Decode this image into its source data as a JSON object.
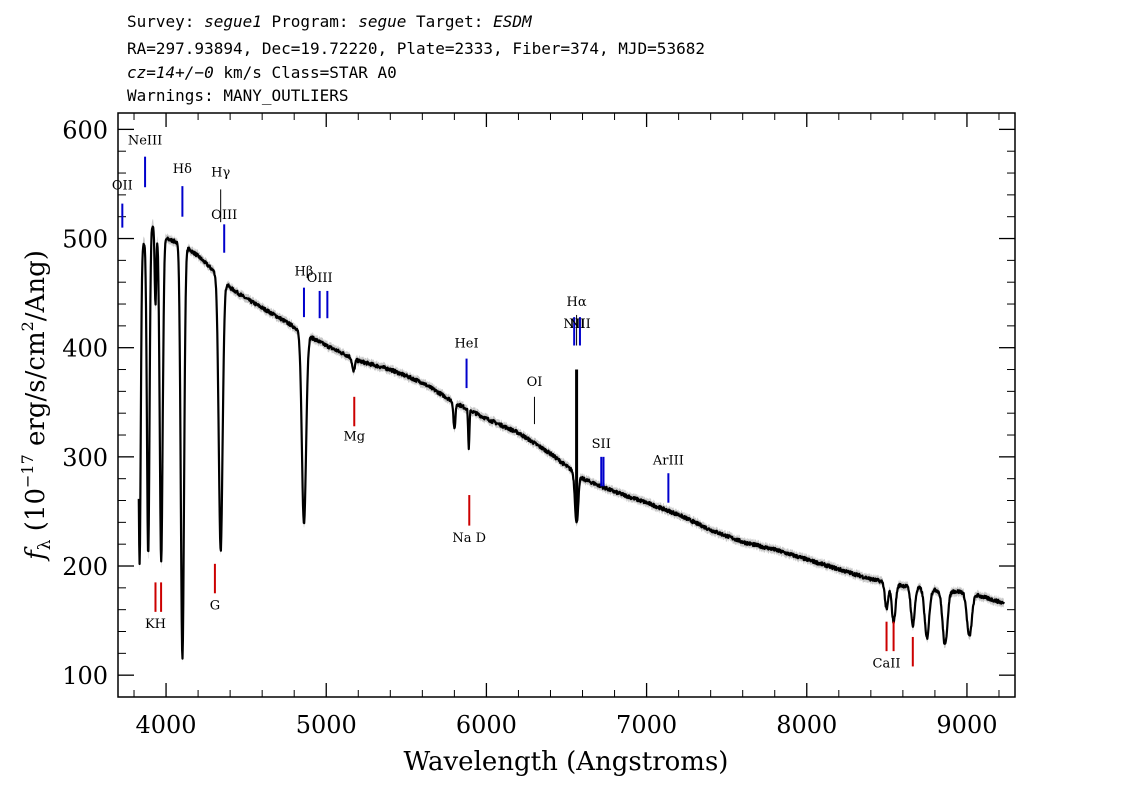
{
  "header": {
    "line1": {
      "survey_label": "Survey: ",
      "survey": "segue1",
      "program_label": " Program: ",
      "program": "segue",
      "target_label": " Target: ",
      "target": "ESDM"
    },
    "line2": "RA=297.93894, Dec=19.72220, Plate=2333, Fiber=374, MJD=53682",
    "line3": {
      "cz": "cz=14+/−0",
      "rest": " km/s Class=STAR A0"
    },
    "line4": "Warnings: MANY_OUTLIERS"
  },
  "colors": {
    "flux": "#000000",
    "error_band": "#9a9a9a",
    "emission": "#0000cc",
    "absorption": "#cc0000"
  },
  "chart_data": {
    "type": "line",
    "title": "",
    "xlabel": "Wavelength (Angstroms)",
    "ylabel": "fλ (10⁻¹⁷ erg/s/cm²/Ang)",
    "ylabel_parts": {
      "f": "f",
      "sub": "λ",
      "a": " (10",
      "exp1": "−17",
      "b": " erg/s/cm",
      "exp2": "2",
      "c": "/Ang)"
    },
    "xlim": [
      3700,
      9300
    ],
    "ylim": [
      80,
      615
    ],
    "xticks": [
      4000,
      5000,
      6000,
      7000,
      8000,
      9000
    ],
    "yticks": [
      100,
      200,
      300,
      400,
      500,
      600
    ],
    "continuum": {
      "x": [
        3830,
        3900,
        4000,
        4100,
        4200,
        4300,
        4400,
        4500,
        4700,
        4900,
        5000,
        5200,
        5400,
        5600,
        5800,
        6000,
        6200,
        6400,
        6600,
        6800,
        7000,
        7200,
        7400,
        7600,
        7800,
        8000,
        8200,
        8400,
        8600,
        8800,
        9000,
        9230
      ],
      "y": [
        480,
        515,
        500,
        495,
        484,
        470,
        455,
        445,
        428,
        410,
        402,
        388,
        380,
        368,
        350,
        335,
        322,
        303,
        280,
        268,
        258,
        247,
        233,
        222,
        215,
        206,
        197,
        188,
        182,
        178,
        176,
        166
      ]
    },
    "absorption_features": [
      {
        "x": 3835,
        "depth": 280,
        "width": 7
      },
      {
        "x": 3889,
        "depth": 300,
        "width": 8
      },
      {
        "x": 3934,
        "depth": 70,
        "width": 5
      },
      {
        "x": 3970,
        "depth": 300,
        "width": 9
      },
      {
        "x": 4102,
        "depth": 380,
        "width": 10
      },
      {
        "x": 4341,
        "depth": 250,
        "width": 12
      },
      {
        "x": 4861,
        "depth": 175,
        "width": 13
      },
      {
        "x": 5170,
        "depth": 12,
        "width": 8
      },
      {
        "x": 5800,
        "depth": 25,
        "width": 6
      },
      {
        "x": 5890,
        "depth": 35,
        "width": 4
      },
      {
        "x": 6563,
        "depth": 45,
        "width": 10
      },
      {
        "x": 8498,
        "depth": 25,
        "width": 10
      },
      {
        "x": 8542,
        "depth": 35,
        "width": 12
      },
      {
        "x": 8662,
        "depth": 35,
        "width": 12
      },
      {
        "x": 8750,
        "depth": 45,
        "width": 14
      },
      {
        "x": 8863,
        "depth": 50,
        "width": 15
      },
      {
        "x": 9015,
        "depth": 40,
        "width": 15
      }
    ],
    "emission_spikes": [
      {
        "x": 6563,
        "top": 380
      }
    ],
    "line_markers": [
      {
        "label": "NeIII",
        "x": 3869,
        "y1": 547,
        "y2": 575,
        "color": "emission",
        "label_y": 586
      },
      {
        "label": "OII",
        "x": 3727,
        "y1": 510,
        "y2": 532,
        "color": "emission",
        "label_y": 545
      },
      {
        "label": "Hδ",
        "x": 4102,
        "y1": 520,
        "y2": 548,
        "color": "emission",
        "label_y": 560
      },
      {
        "label": "Hγ",
        "x": 4341,
        "y1": 515,
        "y2": 545,
        "color": "thin",
        "label_y": 557
      },
      {
        "label": "OIII",
        "x": 4363,
        "y1": 487,
        "y2": 513,
        "color": "emission",
        "label_y": 518
      },
      {
        "label": "Hβ",
        "x": 4861,
        "y1": 428,
        "y2": 455,
        "color": "emission",
        "label_y": 466
      },
      {
        "label": "OIII",
        "x": 4959,
        "y1": 427,
        "y2": 452,
        "color": "emission",
        "label_y": 460
      },
      {
        "label": "",
        "x": 5007,
        "y1": 427,
        "y2": 452,
        "color": "emission",
        "label_y": 0
      },
      {
        "label": "Mg",
        "x": 5175,
        "y1": 328,
        "y2": 355,
        "color": "absorption",
        "label_y": 315
      },
      {
        "label": "HeI",
        "x": 5876,
        "y1": 363,
        "y2": 390,
        "color": "emission",
        "label_y": 400
      },
      {
        "label": "Na  D",
        "x": 5893,
        "y1": 237,
        "y2": 265,
        "color": "absorption",
        "label_y": 222
      },
      {
        "label": "OI",
        "x": 6300,
        "y1": 330,
        "y2": 355,
        "color": "thin",
        "label_y": 365
      },
      {
        "label": "NII",
        "x": 6548,
        "y1": 402,
        "y2": 428,
        "color": "emission",
        "label_y": 418
      },
      {
        "label": "Hα",
        "x": 6563,
        "y1": 402,
        "y2": 430,
        "color": "thin",
        "label_y": 438
      },
      {
        "label": "NII",
        "x": 6584,
        "y1": 402,
        "y2": 428,
        "color": "emission",
        "label_y": 418
      },
      {
        "label": "SII",
        "x": 6717,
        "y1": 273,
        "y2": 300,
        "color": "emission",
        "label_y": 308
      },
      {
        "label": "",
        "x": 6731,
        "y1": 273,
        "y2": 300,
        "color": "emission",
        "label_y": 0
      },
      {
        "label": "ArIII",
        "x": 7136,
        "y1": 258,
        "y2": 285,
        "color": "emission",
        "label_y": 293
      },
      {
        "label": "KH",
        "x": 3934,
        "y1": 158,
        "y2": 185,
        "color": "absorption",
        "label_y": 143
      },
      {
        "label": "",
        "x": 3969,
        "y1": 158,
        "y2": 185,
        "color": "absorption",
        "label_y": 0
      },
      {
        "label": "G",
        "x": 4305,
        "y1": 175,
        "y2": 202,
        "color": "absorption",
        "label_y": 160
      },
      {
        "label": "CaII",
        "x": 8498,
        "y1": 122,
        "y2": 149,
        "color": "absorption",
        "label_y": 107
      },
      {
        "label": "",
        "x": 8542,
        "y1": 122,
        "y2": 149,
        "color": "absorption",
        "label_y": 0
      },
      {
        "label": "",
        "x": 8662,
        "y1": 108,
        "y2": 135,
        "color": "absorption",
        "label_y": 0
      }
    ]
  }
}
